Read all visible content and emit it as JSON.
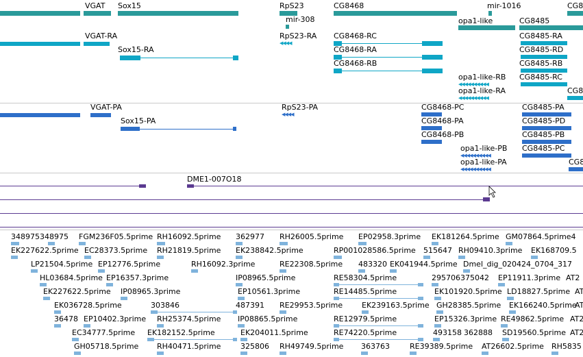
{
  "colors": {
    "gene": "#2a9a9a",
    "transcript": "#0fa6c6",
    "protein": "#2e6fc9",
    "insertion": "#5b3a91",
    "est": "#7fb3dc",
    "separator": "#c9c9c9"
  },
  "tracks": {
    "gene_labels": [
      "VGAT",
      "Sox15",
      "RpS23",
      "CG8468",
      "mir-1016",
      "CG8",
      "mir-308",
      "opa1-like",
      "CG8485"
    ],
    "transcript_labels": [
      "VGAT-RA",
      "RpS23-RA",
      "CG8468-RC",
      "CG8485-RA",
      "Sox15-RA",
      "CG8468-RA",
      "CG8485-RD",
      "CG8468-RB",
      "CG8485-RB",
      "opa1-like-RB",
      "CG8485-RC",
      "opa1-like-RA",
      "CG8"
    ],
    "protein_labels": [
      "VGAT-PA",
      "RpS23-PA",
      "CG8468-PC",
      "CG8485-PA",
      "Sox15-PA",
      "CG8468-PA",
      "CG8485-PD",
      "CG8468-PB",
      "CG8485-PB",
      "opa1-like-PB",
      "CG8485-PC",
      "opa1-like-PA",
      "CG8"
    ],
    "insertion_labels": [
      "DME1-007O18"
    ],
    "est_labels": [
      "348975348975",
      "FGM236F05.5prime",
      "RH16092.5prime",
      "362977",
      "RH26005.5prime",
      "EP02958.3prime",
      "EK181264.5prime",
      "GM07864.5prime4",
      "EK227622.5prime",
      "EC28373.5prime",
      "RH21819.5prime",
      "EK238842.5prime",
      "RP001028586.5prime",
      "515647",
      "RH09410.3prime",
      "EK168709.5",
      "LP21504.5prime",
      "EP12776.5prime",
      "RH16092.3prime",
      "RE22308.5prime",
      "483320",
      "EK041944.5prime",
      "Dmel_dig_020424_0704_317",
      "HL03684.5prime",
      "EP16357.3prime",
      "IP08965.5prime",
      "RE58304.5prime",
      "295706375042",
      "EP11911.3prime",
      "AT2",
      "EK227622.5prime",
      "IP08965.3prime",
      "EP10561.3prime",
      "RE14485.5prime",
      "EK101920.5prime",
      "LD18827.5prime",
      "AT",
      "EK036728.5prime",
      "303846",
      "487391",
      "RE29953.5prime",
      "EK239163.5prime",
      "GH28385.5prime",
      "EK166240.5prime",
      "AT",
      "36478",
      "EP10402.3prime",
      "RH25374.5prime",
      "IP08865.5prime",
      "RE12979.5prime",
      "EP15326.3prime",
      "RE49862.5prime",
      "AT2",
      "EC34777.5prime",
      "EK182152.5prime",
      "EK204011.5prime",
      "RE74220.5prime",
      "493158",
      "362888",
      "SD19560.5prime",
      "AT2",
      "GH05718.5prime",
      "RH40471.5prime",
      "325806",
      "RH49749.5prime",
      "363763",
      "RE39389.5prime",
      "AT26602.5prime",
      "RH5835"
    ]
  }
}
